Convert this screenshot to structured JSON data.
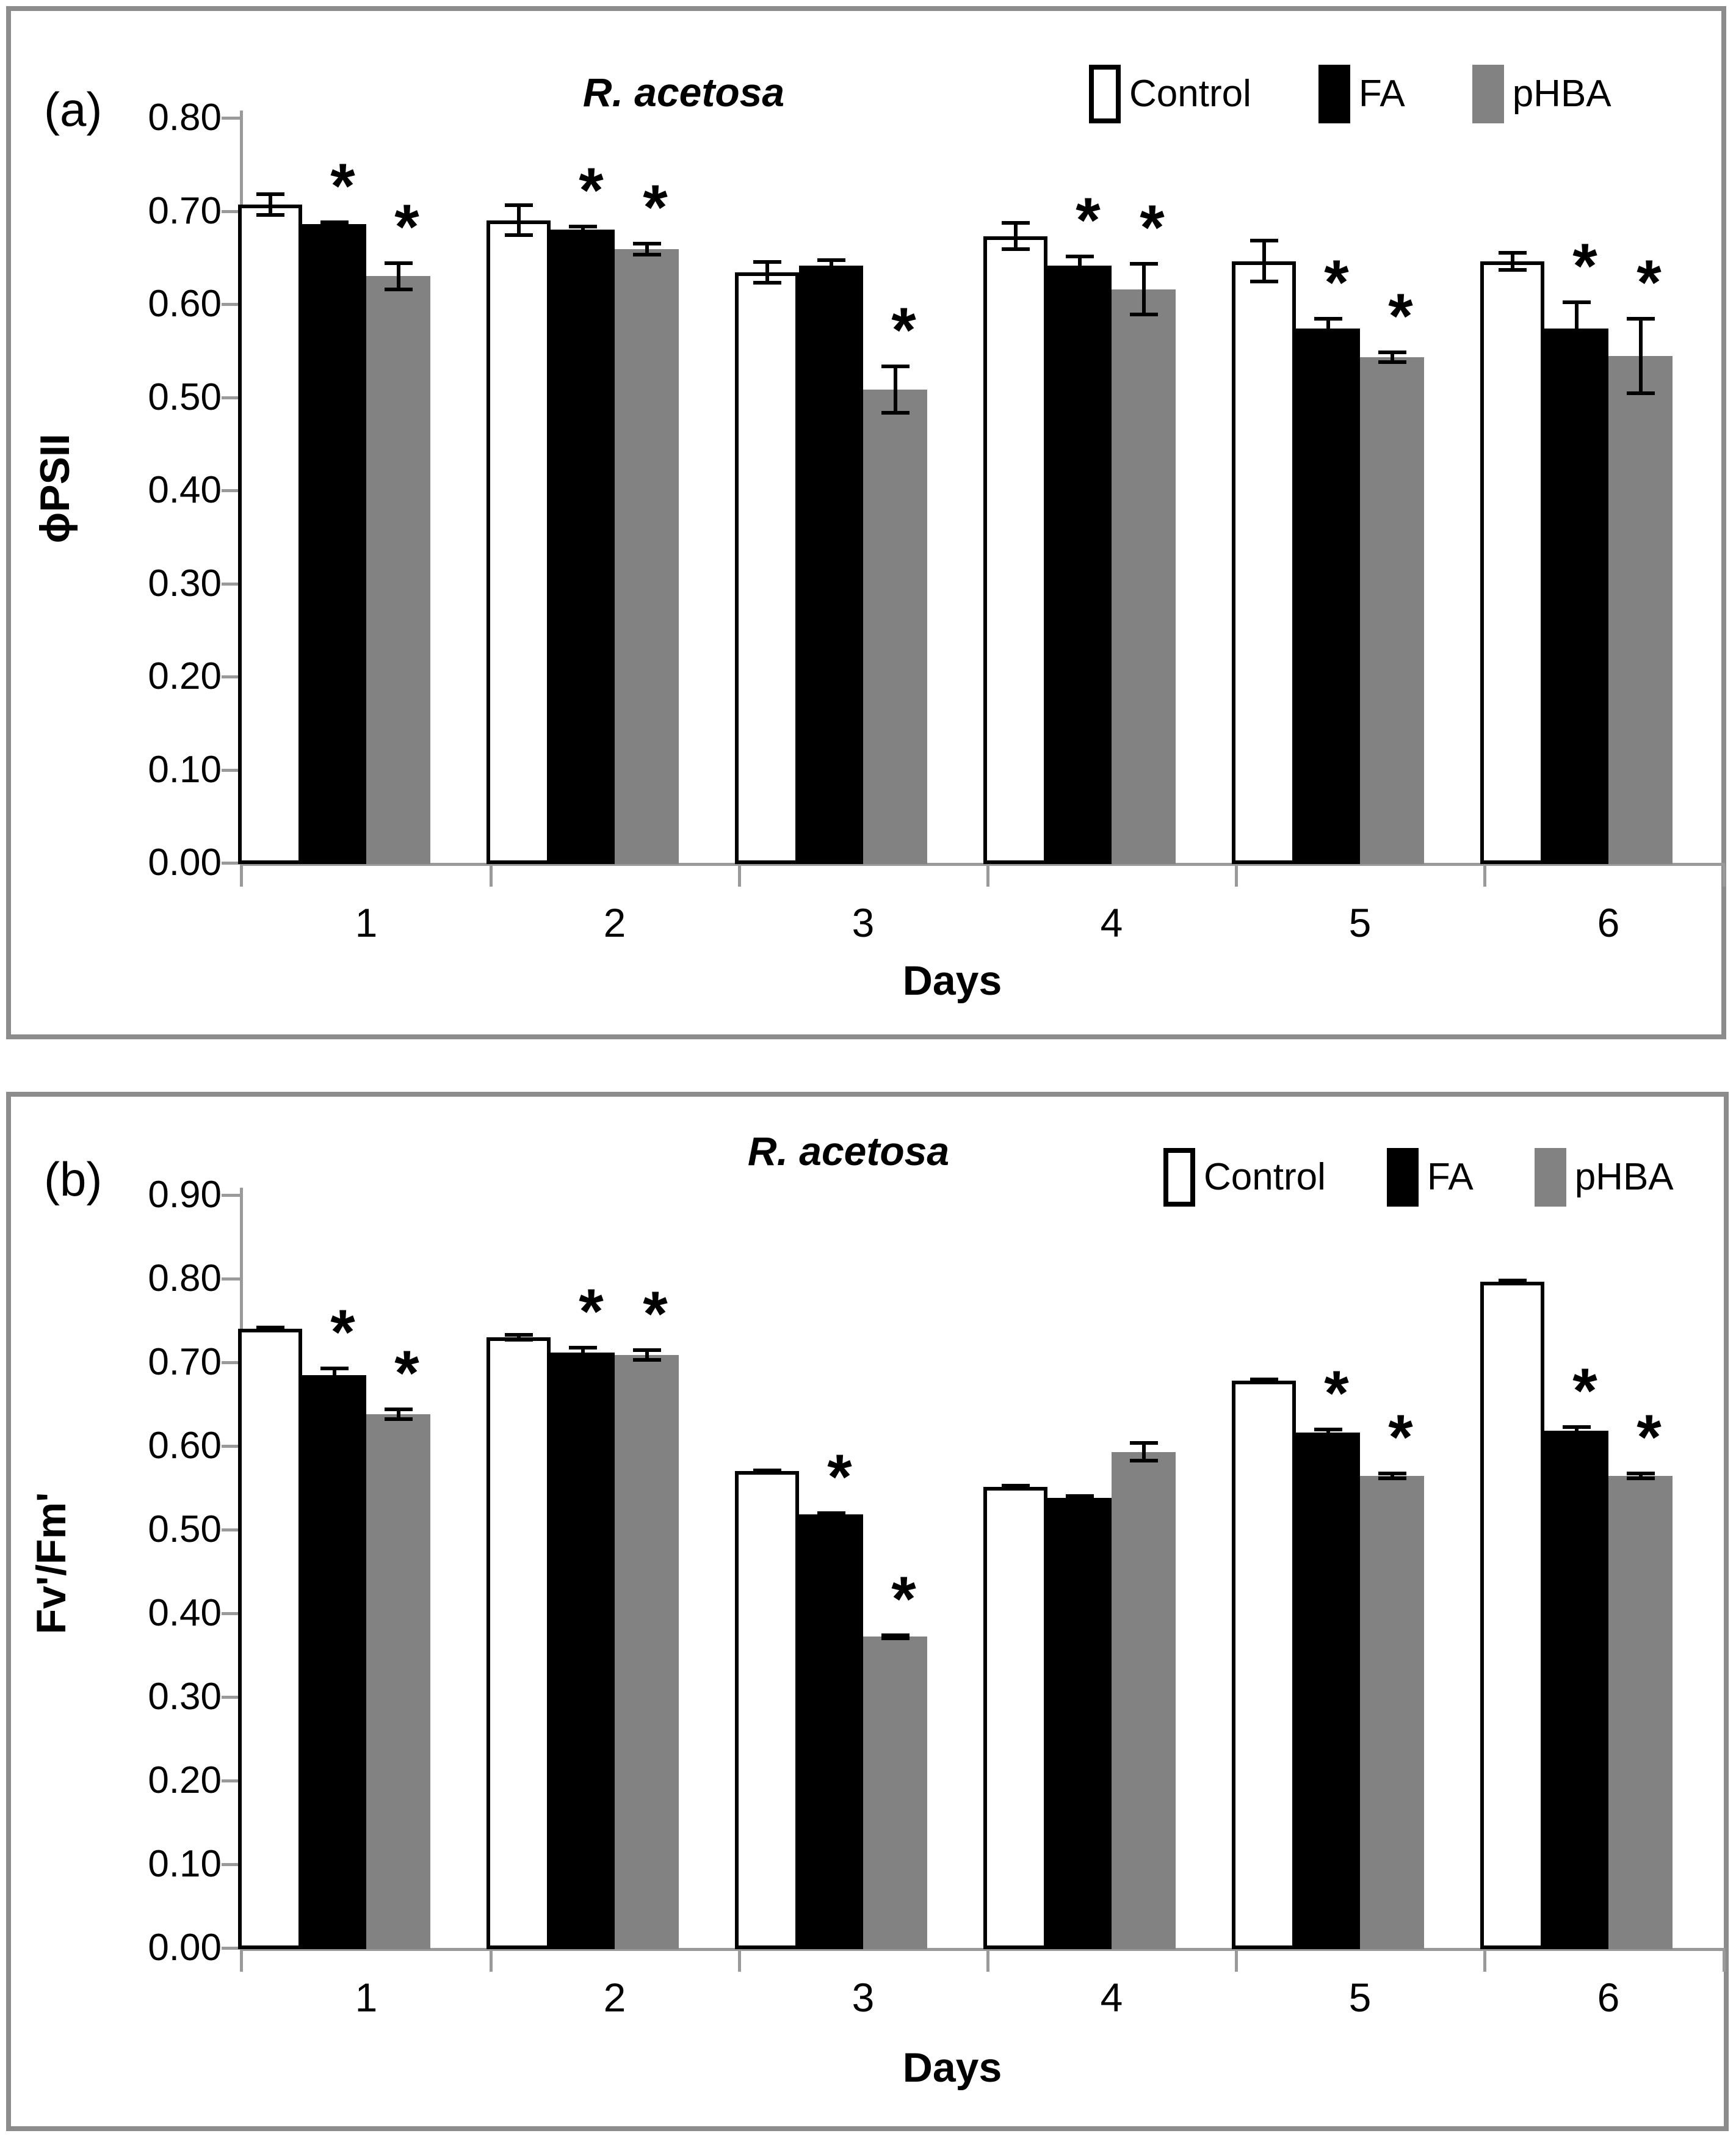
{
  "figure": {
    "background": "#ffffff",
    "frame_color": "#8c8c8c",
    "axis_color": "#9a9a9a",
    "error_bar_color": "#000000",
    "significance_marker": "*"
  },
  "chart_data": [
    {
      "panel_label": "(a)",
      "type": "bar",
      "title": "R. acetosa",
      "xlabel": "Days",
      "ylabel": "ϕPSII",
      "ylim": [
        0.0,
        0.8
      ],
      "ytick_step": 0.1,
      "tick_decimals": 2,
      "grid": false,
      "legend_position": "top-right",
      "categories": [
        "1",
        "2",
        "3",
        "4",
        "5",
        "6"
      ],
      "series": [
        {
          "name": "Control",
          "fill": "#ffffff",
          "border": "#000000",
          "values": [
            0.707,
            0.69,
            0.634,
            0.673,
            0.646,
            0.646
          ],
          "errors": [
            0.013,
            0.018,
            0.013,
            0.016,
            0.024,
            0.011
          ],
          "significant": [
            false,
            false,
            false,
            false,
            false,
            false
          ]
        },
        {
          "name": "FA",
          "fill": "#000000",
          "border": "#000000",
          "values": [
            0.686,
            0.68,
            0.641,
            0.641,
            0.574,
            0.574
          ],
          "errors": [
            0.004,
            0.005,
            0.008,
            0.012,
            0.012,
            0.03
          ],
          "significant": [
            true,
            true,
            false,
            true,
            true,
            true
          ]
        },
        {
          "name": "pHBA",
          "fill": "#828282",
          "border": "none",
          "values": [
            0.63,
            0.659,
            0.508,
            0.616,
            0.543,
            0.544
          ],
          "errors": [
            0.016,
            0.008,
            0.027,
            0.029,
            0.007,
            0.042
          ],
          "significant": [
            true,
            true,
            true,
            true,
            true,
            true
          ]
        }
      ]
    },
    {
      "panel_label": "(b)",
      "type": "bar",
      "title": "R. acetosa",
      "xlabel": "Days",
      "ylabel": "Fv'/Fm'",
      "ylim": [
        0.0,
        0.9
      ],
      "ytick_step": 0.1,
      "tick_decimals": 2,
      "grid": false,
      "legend_position": "top-right",
      "categories": [
        "1",
        "2",
        "3",
        "4",
        "5",
        "6"
      ],
      "series": [
        {
          "name": "Control",
          "fill": "#ffffff",
          "border": "#000000",
          "values": [
            0.74,
            0.73,
            0.57,
            0.551,
            0.678,
            0.796
          ],
          "errors": [
            0.004,
            0.005,
            0.003,
            0.004,
            0.004,
            0.004
          ],
          "significant": [
            false,
            false,
            false,
            false,
            false,
            false
          ]
        },
        {
          "name": "FA",
          "fill": "#000000",
          "border": "#000000",
          "values": [
            0.685,
            0.712,
            0.518,
            0.538,
            0.616,
            0.618
          ],
          "errors": [
            0.01,
            0.008,
            0.004,
            0.004,
            0.006,
            0.007
          ],
          "significant": [
            true,
            true,
            true,
            false,
            true,
            true
          ]
        },
        {
          "name": "pHBA",
          "fill": "#828282",
          "border": "none",
          "values": [
            0.638,
            0.709,
            0.372,
            0.593,
            0.564,
            0.564
          ],
          "errors": [
            0.008,
            0.008,
            0.004,
            0.013,
            0.005,
            0.005
          ],
          "significant": [
            true,
            true,
            true,
            false,
            true,
            true
          ]
        }
      ]
    }
  ]
}
